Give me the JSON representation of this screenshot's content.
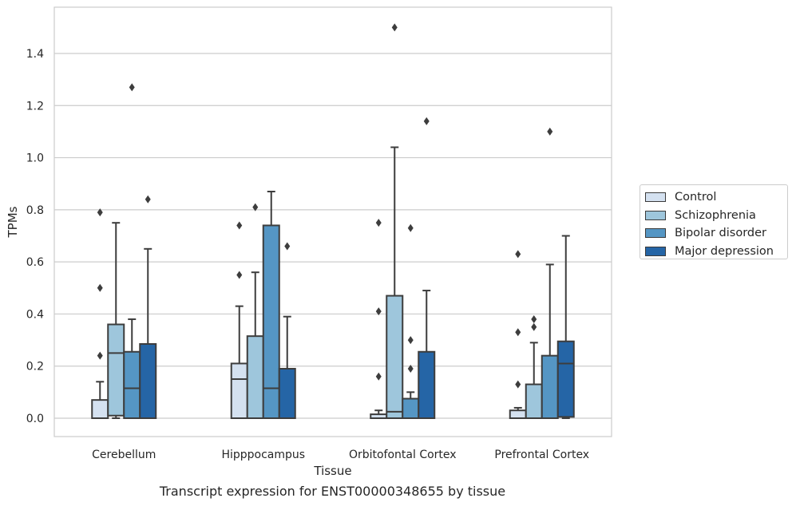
{
  "chart_data": {
    "type": "box",
    "title": "",
    "caption": "Transcript expression for ENST00000348655 by tissue",
    "xlabel": "Tissue",
    "ylabel": "TPMs",
    "ylim": [
      -0.07,
      1.58
    ],
    "yticks": [
      "0.0",
      "0.2",
      "0.4",
      "0.6",
      "0.8",
      "1.0",
      "1.2",
      "1.4"
    ],
    "ytick_values": [
      0,
      0.2,
      0.4,
      0.6,
      0.8,
      1.0,
      1.2,
      1.4
    ],
    "grid": true,
    "legend_position": "right",
    "categories": [
      "Cerebellum",
      "Hipppocampus",
      "Orbitofontal Cortex",
      "Prefrontal Cortex"
    ],
    "series": [
      {
        "name": "Control",
        "color": "#d4e1f0",
        "boxes": [
          {
            "min": 0.0,
            "q1": 0.0,
            "median": 0.0,
            "q3": 0.07,
            "max": 0.14,
            "outliers": [
              0.24,
              0.5,
              0.79
            ]
          },
          {
            "min": 0.0,
            "q1": 0.0,
            "median": 0.15,
            "q3": 0.21,
            "max": 0.43,
            "outliers": [
              0.55,
              0.74
            ]
          },
          {
            "min": 0.0,
            "q1": 0.0,
            "median": 0.0,
            "q3": 0.015,
            "max": 0.03,
            "outliers": [
              0.16,
              0.41,
              0.75
            ]
          },
          {
            "min": 0.0,
            "q1": 0.0,
            "median": 0.0,
            "q3": 0.03,
            "max": 0.04,
            "outliers": [
              0.13,
              0.33,
              0.63
            ]
          }
        ]
      },
      {
        "name": "Schizophrenia",
        "color": "#9ec6dc",
        "boxes": [
          {
            "min": 0.0,
            "q1": 0.01,
            "median": 0.25,
            "q3": 0.36,
            "max": 0.75,
            "outliers": []
          },
          {
            "min": 0.0,
            "q1": 0.0,
            "median": 0.0,
            "q3": 0.315,
            "max": 0.56,
            "outliers": [
              0.81
            ]
          },
          {
            "min": 0.0,
            "q1": 0.0,
            "median": 0.025,
            "q3": 0.47,
            "max": 1.04,
            "outliers": [
              1.5
            ]
          },
          {
            "min": 0.0,
            "q1": 0.0,
            "median": 0.0,
            "q3": 0.13,
            "max": 0.29,
            "outliers": [
              0.35,
              0.38
            ]
          }
        ]
      },
      {
        "name": "Bipolar disorder",
        "color": "#5596c4",
        "boxes": [
          {
            "min": 0.0,
            "q1": 0.0,
            "median": 0.115,
            "q3": 0.255,
            "max": 0.38,
            "outliers": [
              1.27
            ]
          },
          {
            "min": 0.0,
            "q1": 0.0,
            "median": 0.115,
            "q3": 0.74,
            "max": 0.87,
            "outliers": []
          },
          {
            "min": 0.0,
            "q1": 0.0,
            "median": 0.0,
            "q3": 0.075,
            "max": 0.1,
            "outliers": [
              0.19,
              0.3,
              0.73
            ]
          },
          {
            "min": 0.0,
            "q1": 0.0,
            "median": 0.0,
            "q3": 0.24,
            "max": 0.59,
            "outliers": [
              1.1
            ]
          }
        ]
      },
      {
        "name": "Major depression",
        "color": "#2565a6",
        "boxes": [
          {
            "min": 0.0,
            "q1": 0.0,
            "median": 0.0,
            "q3": 0.285,
            "max": 0.65,
            "outliers": [
              0.84
            ]
          },
          {
            "min": 0.0,
            "q1": 0.0,
            "median": 0.0,
            "q3": 0.19,
            "max": 0.39,
            "outliers": [
              0.66
            ]
          },
          {
            "min": 0.0,
            "q1": 0.0,
            "median": 0.0,
            "q3": 0.255,
            "max": 0.49,
            "outliers": [
              1.14
            ]
          },
          {
            "min": 0.0,
            "q1": 0.005,
            "median": 0.21,
            "q3": 0.295,
            "max": 0.7,
            "outliers": []
          }
        ]
      }
    ]
  }
}
